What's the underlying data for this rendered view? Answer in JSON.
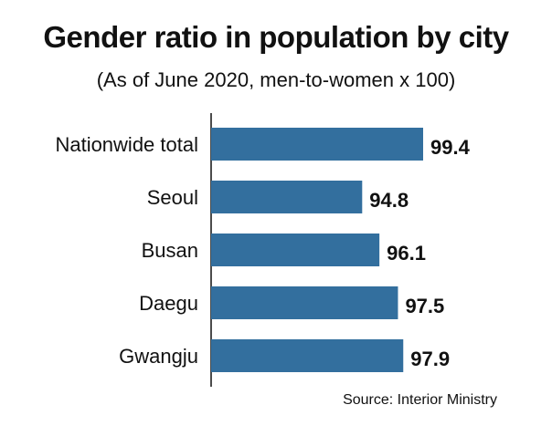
{
  "chart_data": {
    "type": "bar",
    "orientation": "horizontal",
    "title": "Gender ratio in population by city",
    "subtitle": "(As of June 2020, men-to-women x 100)",
    "categories": [
      "Nationwide total",
      "Seoul",
      "Busan",
      "Daegu",
      "Gwangju"
    ],
    "values": [
      99.4,
      94.8,
      96.1,
      97.5,
      97.9
    ],
    "value_labels": [
      "99.4",
      "94.8",
      "96.1",
      "97.5",
      "97.9"
    ],
    "bar_color": "#336f9e",
    "source": "Source: Interior Ministry",
    "grid": false,
    "legend": "none"
  }
}
